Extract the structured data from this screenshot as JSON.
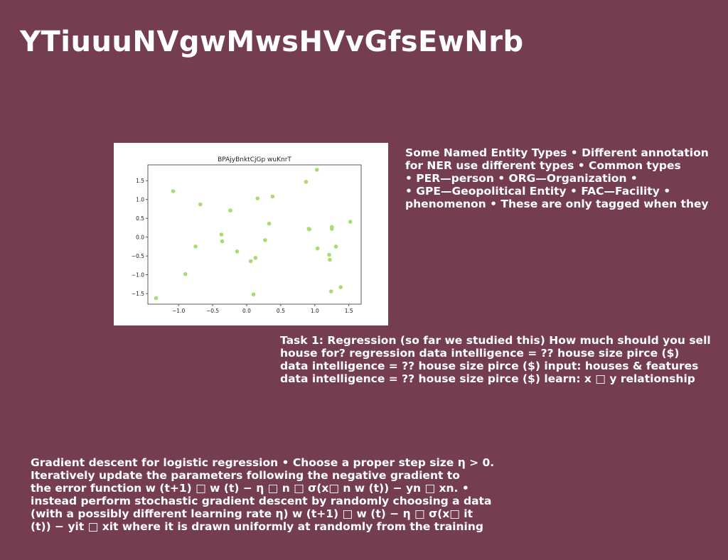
{
  "slide": {
    "title": "YTiuuuNVgwMwsHVvGfsEwNrb",
    "background": "#753e50"
  },
  "text_blocks": {
    "entities": [
      "Some Named Entity Types • Different annotation",
      "for NER use different types • Common types",
      "• PER—person • ORG—Organization •",
      "• GPE—Geopolitical Entity • FAC—Facility •",
      "phenomenon • These are only tagged when they"
    ],
    "task": [
      "Task 1: Regression (so far we studied this) How much should you sell",
      "house for? regression data intelligence = ?? house size pirce ($)",
      "data intelligence = ?? house size pirce ($) input: houses & features",
      "data intelligence = ?? house size pirce ($) learn: x □ y relationship"
    ],
    "gradient": [
      "Gradient descent for logistic regression • Choose a proper step size η > 0.",
      "Iteratively update the parameters following the negative gradient to",
      "the error function w (t+1) □ w (t) − η □ n □ σ(x□ n w (t)) − yn □ xn. •",
      "instead perform stochastic gradient descent by randomly choosing a data",
      "(with a possibly different learning rate η) w (t+1) □ w (t) − η □ σ(x□ it",
      "(t)) − yit □ xit where it is drawn uniformly at randomly from the training"
    ]
  },
  "chart_data": {
    "type": "scatter",
    "title": "BPAjyBnktCjGp wuKnrT",
    "xlabel": "",
    "ylabel": "",
    "xlim": [
      -1.45,
      1.68
    ],
    "ylim": [
      -1.78,
      1.92
    ],
    "xticks": [
      -1.0,
      -0.5,
      0.0,
      0.5,
      1.0,
      1.5
    ],
    "yticks": [
      -1.5,
      -1.0,
      -0.5,
      0.0,
      0.5,
      1.0,
      1.5
    ],
    "xtick_labels": [
      "−1.0",
      "−0.5",
      "0.0",
      "0.5",
      "1.0",
      "1.5"
    ],
    "ytick_labels": [
      "−1.5",
      "−1.0",
      "−0.5",
      "0.0",
      "0.5",
      "1.0",
      "1.5"
    ],
    "grid": false,
    "point_color": "#a8dc6e",
    "points": [
      {
        "x": -1.33,
        "y": -1.62
      },
      {
        "x": -1.08,
        "y": 1.22
      },
      {
        "x": -0.9,
        "y": -0.98
      },
      {
        "x": -0.75,
        "y": -0.25
      },
      {
        "x": -0.68,
        "y": 0.87
      },
      {
        "x": -0.37,
        "y": 0.07
      },
      {
        "x": -0.36,
        "y": -0.11
      },
      {
        "x": -0.24,
        "y": 0.71
      },
      {
        "x": -0.14,
        "y": -0.38
      },
      {
        "x": 0.06,
        "y": -0.64
      },
      {
        "x": 0.1,
        "y": -1.52
      },
      {
        "x": 0.13,
        "y": -0.55
      },
      {
        "x": 0.16,
        "y": 1.03
      },
      {
        "x": 0.27,
        "y": -0.08
      },
      {
        "x": 0.33,
        "y": 0.36
      },
      {
        "x": 0.38,
        "y": 1.08
      },
      {
        "x": 0.87,
        "y": 1.47
      },
      {
        "x": 0.91,
        "y": 0.22
      },
      {
        "x": 0.92,
        "y": 0.21
      },
      {
        "x": 1.03,
        "y": 1.79
      },
      {
        "x": 1.04,
        "y": -0.3
      },
      {
        "x": 1.21,
        "y": -0.47
      },
      {
        "x": 1.22,
        "y": -0.6
      },
      {
        "x": 1.24,
        "y": -1.44
      },
      {
        "x": 1.25,
        "y": 0.27
      },
      {
        "x": 1.25,
        "y": 0.22
      },
      {
        "x": 1.31,
        "y": -0.25
      },
      {
        "x": 1.38,
        "y": -1.33
      },
      {
        "x": 1.52,
        "y": 0.41
      }
    ]
  }
}
